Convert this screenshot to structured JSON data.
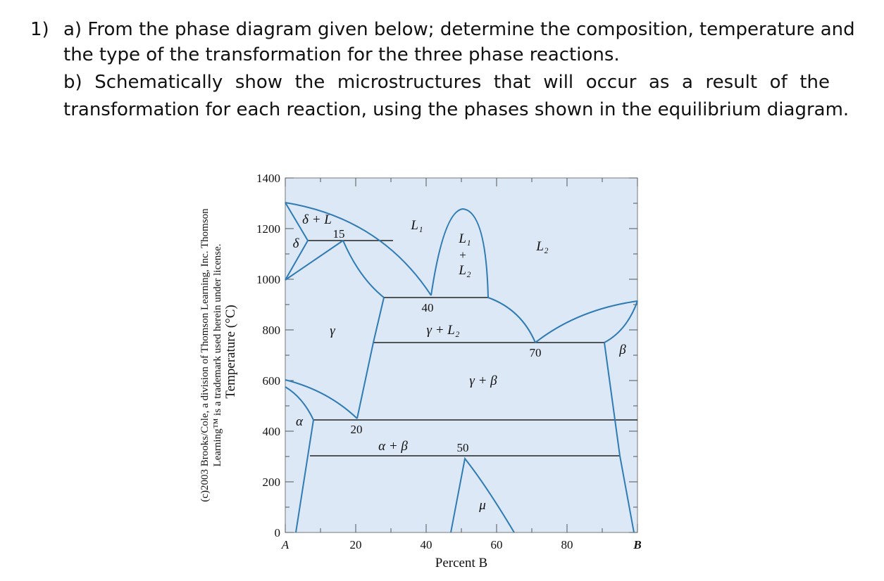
{
  "question": {
    "number": "1)",
    "part_a": [
      "a) From the phase diagram given below; determine the composition, temperature and",
      "the type of the transformation for the three phase reactions."
    ],
    "part_b": [
      "b) Schematically show the microstructures that will occur as a result of the",
      "transformation for each reaction, using the phases shown in the equilibrium diagram."
    ]
  },
  "figure": {
    "copyright": [
      "(c)2003 Brooks/Cole, a division of Thomson Learning, Inc. Thomson",
      "Learning™ is a trademark used herein under license."
    ],
    "y_axis_label": "Temperature (°C)",
    "x_axis_label": "Percent B",
    "yticks": [
      "1400",
      "1200",
      "1000",
      "800",
      "600",
      "400",
      "200",
      "0"
    ],
    "xticks": [
      "A",
      "20",
      "40",
      "60",
      "80",
      "B"
    ],
    "region_labels": [
      "δ + L",
      "15",
      "δ",
      "L₁",
      "L₁",
      "+",
      "L₂",
      "L₂",
      "40",
      "γ",
      "γ + L₂",
      "70",
      "β",
      "γ + β",
      "α",
      "20",
      "α + β",
      "50",
      "μ"
    ]
  }
}
